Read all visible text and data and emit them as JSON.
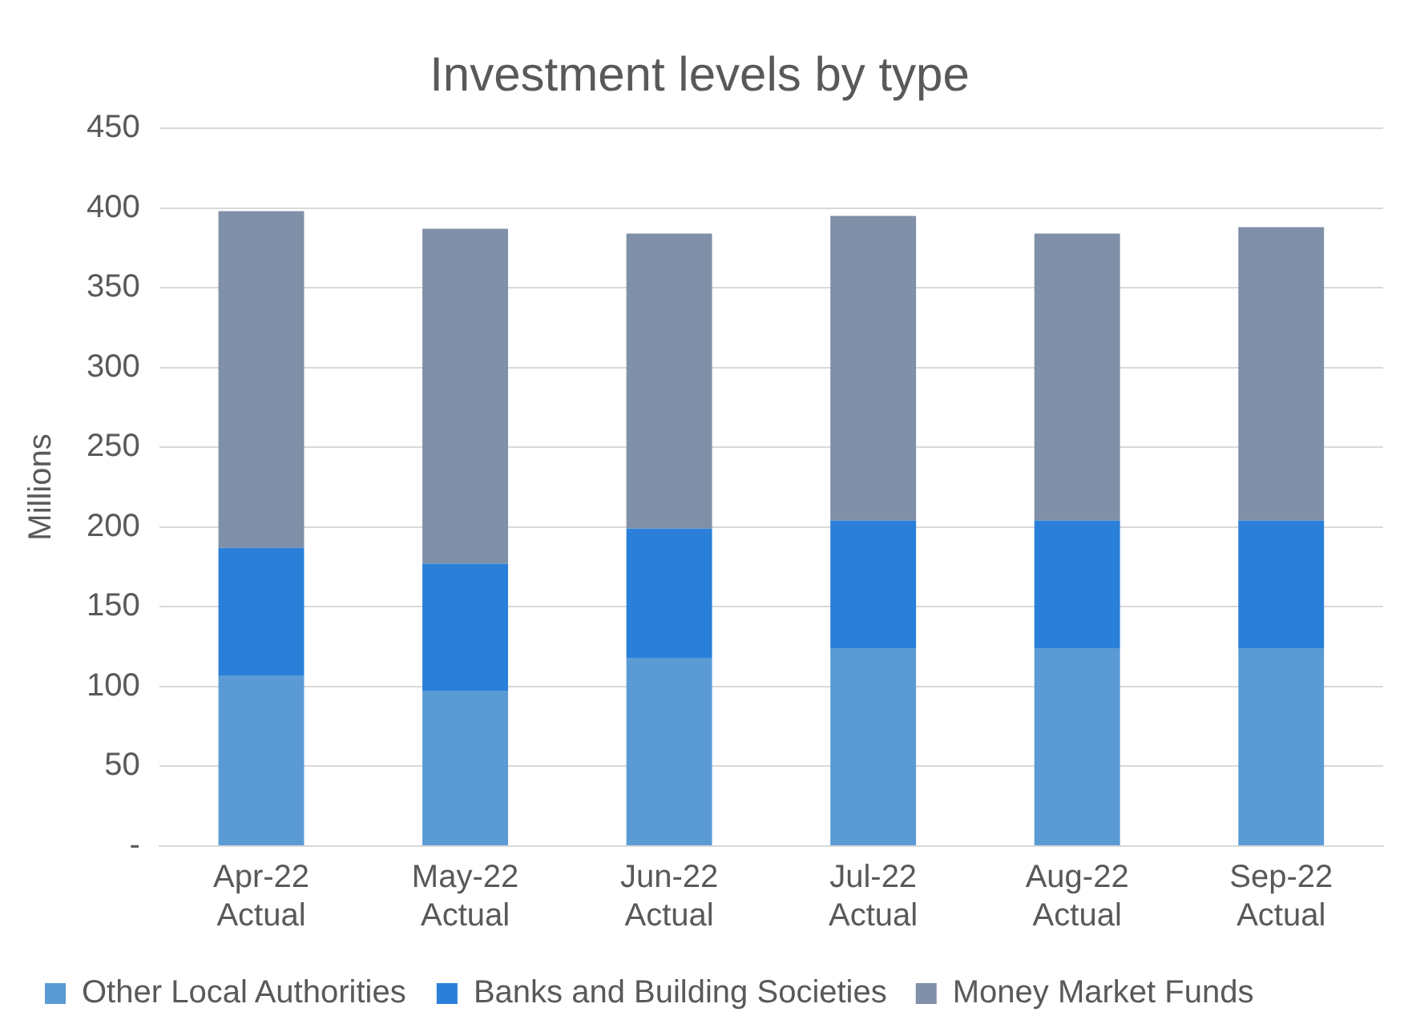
{
  "chart_data": {
    "type": "bar",
    "title": "Investment levels by type",
    "ylabel": "Millions",
    "categories": [
      "Apr-22\nActual",
      "May-22\nActual",
      "Jun-22\nActual",
      "Jul-22\nActual",
      "Aug-22\nActual",
      "Sep-22\nActual"
    ],
    "series": [
      {
        "name": "Other Local Authorities",
        "color": "#5b9bd5",
        "values": [
          107,
          97,
          118,
          124,
          124,
          124
        ]
      },
      {
        "name": "Banks and Building Societies",
        "color": "#2a7fd9",
        "values": [
          80,
          80,
          81,
          80,
          80,
          80
        ]
      },
      {
        "name": "Money Market Funds",
        "color": "#8090a8",
        "values": [
          211,
          210,
          185,
          191,
          180,
          184
        ]
      }
    ],
    "stacked": true,
    "ylim": [
      0,
      450
    ],
    "yticks": [
      {
        "value": 0,
        "label": "-"
      },
      50,
      100,
      150,
      200,
      250,
      300,
      350,
      400,
      450
    ],
    "grid": "y",
    "legend": "bottom"
  }
}
